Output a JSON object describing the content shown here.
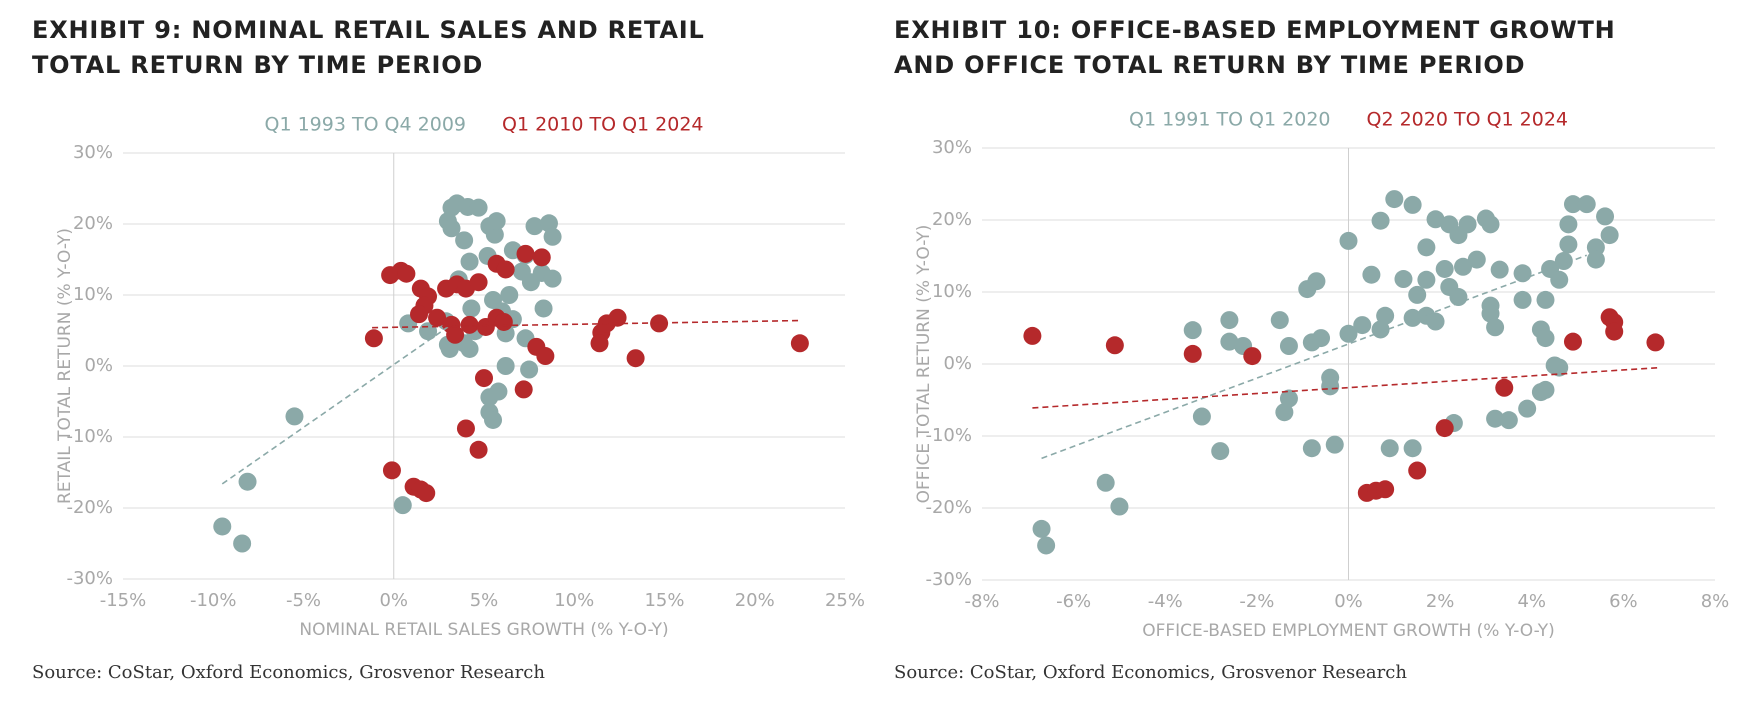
{
  "chart_data": [
    {
      "type": "scatter",
      "title": [
        "EXHIBIT 9: NOMINAL RETAIL SALES AND RETAIL",
        "TOTAL RETURN BY TIME PERIOD"
      ],
      "x_label": "NOMINAL RETAIL SALES GROWTH (% Y-O-Y)",
      "y_label": "RETAIL TOTAL RETURN (% Y-O-Y)",
      "source": "Source: CoStar, Oxford Economics, Grosvenor Research",
      "xlim": [
        -15,
        25
      ],
      "xticks": [
        {
          "value": -15,
          "label": "-15%"
        },
        {
          "value": -10,
          "label": "-10%"
        },
        {
          "value": -5,
          "label": "-5%"
        },
        {
          "value": 0,
          "label": "0%"
        },
        {
          "value": 5,
          "label": "5%"
        },
        {
          "value": 10,
          "label": "10%"
        },
        {
          "value": 15,
          "label": "15%"
        },
        {
          "value": 20,
          "label": "20%"
        },
        {
          "value": 25,
          "label": "25%"
        }
      ],
      "ylim": [
        -30,
        30
      ],
      "yticks": [
        {
          "value": -30,
          "label": "-30%"
        },
        {
          "value": -20,
          "label": "-20%"
        },
        {
          "value": -10,
          "label": "-10%"
        },
        {
          "value": 0,
          "label": "0%"
        },
        {
          "value": 10,
          "label": "10%"
        },
        {
          "value": 20,
          "label": "20%"
        },
        {
          "value": 30,
          "label": "30%"
        }
      ],
      "grid": true,
      "series": [
        {
          "name": "Q1 1993 TO Q4 2009",
          "color": "#8ba9a8",
          "x": [
            -9.5,
            -8.4,
            -8.1,
            -5.5,
            0.5,
            0.8,
            1.9,
            2.9,
            3.0,
            3.1,
            3.0,
            3.2,
            3.5,
            3.2,
            4.1,
            4.7,
            3.9,
            4.2,
            3.6,
            4.3,
            4.5,
            3.9,
            4.2,
            5.3,
            5.6,
            5.2,
            5.7,
            5.5,
            6.0,
            6.2,
            5.3,
            5.3,
            5.8,
            5.5,
            6.2,
            6.4,
            6.6,
            7.3,
            7.1,
            7.3,
            7.5,
            7.8,
            8.2,
            8.3,
            8.6,
            8.8,
            8.8,
            7.6,
            6.6
          ],
          "values": [
            -22.6,
            -25,
            -16.3,
            -7.1,
            -19.6,
            6,
            4.9,
            6.3,
            3,
            2.4,
            20.4,
            22.3,
            22.9,
            19.4,
            22.4,
            22.3,
            17.7,
            14.7,
            12.2,
            8.1,
            4.9,
            3.2,
            2.4,
            19.7,
            18.5,
            15.5,
            20.4,
            9.3,
            7.7,
            4.6,
            -4.4,
            -6.5,
            -3.6,
            -7.6,
            0,
            10,
            16.3,
            15.6,
            13.3,
            3.9,
            -0.5,
            19.7,
            13.1,
            8.1,
            20.1,
            18.2,
            12.3,
            11.8,
            6.6
          ],
          "trend_x": [
            -9.5,
            3.0
          ],
          "trend_y": [
            -16.6,
            5.5
          ]
        },
        {
          "name": "Q1 2010 TO Q1 2024",
          "color": "#b5292b",
          "x": [
            -1.1,
            -0.2,
            0.4,
            0.7,
            1.5,
            1.9,
            1.7,
            1.4,
            2.4,
            2.9,
            3.5,
            4.0,
            3.2,
            3.4,
            4.2,
            5.1,
            5.7,
            6.1,
            4.7,
            5.7,
            6.2,
            7.3,
            8.2,
            7.9,
            8.4,
            5.0,
            4.0,
            4.7,
            7.2,
            -0.1,
            1.1,
            1.5,
            1.8,
            11.5,
            11.8,
            12.4,
            11.4,
            13.4,
            14.7,
            22.5
          ],
          "values": [
            3.9,
            12.8,
            13.4,
            13,
            10.9,
            9.8,
            8.5,
            7.3,
            6.8,
            10.9,
            11.5,
            10.9,
            5.8,
            4.4,
            5.8,
            5.5,
            6.8,
            6.2,
            11.8,
            14.4,
            13.6,
            15.8,
            15.3,
            2.7,
            1.4,
            -1.7,
            -8.8,
            -11.8,
            -3.3,
            -14.7,
            -17,
            -17.4,
            -17.9,
            4.7,
            6,
            6.8,
            3.2,
            1.1,
            6,
            3.2
          ],
          "trend_x": [
            -1.2,
            22.5
          ],
          "trend_y": [
            5.4,
            6.4
          ]
        }
      ]
    },
    {
      "type": "scatter",
      "title": [
        "EXHIBIT 10: OFFICE-BASED EMPLOYMENT GROWTH",
        "AND OFFICE TOTAL RETURN BY TIME PERIOD"
      ],
      "x_label": "OFFICE-BASED EMPLOYMENT GROWTH (% Y-O-Y)",
      "y_label": "OFFICE TOTAL RETURN (% Y-O-Y)",
      "source": "Source: CoStar, Oxford Economics, Grosvenor Research",
      "xlim": [
        -8,
        8
      ],
      "xticks": [
        {
          "value": -8,
          "label": "-8%"
        },
        {
          "value": -6,
          "label": "-6%"
        },
        {
          "value": -4,
          "label": "-4%"
        },
        {
          "value": -2,
          "label": "-2%"
        },
        {
          "value": 0,
          "label": "0%"
        },
        {
          "value": 2,
          "label": "2%"
        },
        {
          "value": 4,
          "label": "4%"
        },
        {
          "value": 6,
          "label": "6%"
        },
        {
          "value": 8,
          "label": "8%"
        }
      ],
      "ylim": [
        -30,
        30
      ],
      "yticks": [
        {
          "value": -30,
          "label": "-30%"
        },
        {
          "value": -20,
          "label": "-20%"
        },
        {
          "value": -10,
          "label": "-10%"
        },
        {
          "value": 0,
          "label": "0%"
        },
        {
          "value": 10,
          "label": "10%"
        },
        {
          "value": 20,
          "label": "20%"
        },
        {
          "value": 30,
          "label": "30%"
        }
      ],
      "grid": true,
      "series": [
        {
          "name": "Q1 1991 TO Q1 2020",
          "color": "#8ba9a8",
          "x": [
            -6.7,
            -6.6,
            -5.3,
            -5.0,
            -3.4,
            -3.2,
            -2.8,
            -2.6,
            -2.6,
            -2.3,
            -1.5,
            -1.3,
            -1.3,
            -1.4,
            -0.9,
            -0.7,
            -0.8,
            -0.6,
            -0.8,
            -0.3,
            -0.4,
            -0.4,
            0,
            0.3,
            0,
            0.5,
            0.7,
            0.8,
            0.7,
            1.0,
            1.4,
            1.2,
            0.9,
            1.4,
            1.5,
            1.7,
            1.4,
            1.7,
            1.9,
            1.7,
            1.9,
            2.2,
            2.1,
            2.2,
            2.4,
            2.4,
            2.6,
            2.8,
            2.5,
            2.3,
            3.0,
            3.1,
            3.3,
            3.1,
            3.1,
            3.2,
            3.2,
            3.5,
            3.8,
            3.8,
            3.9,
            4.2,
            4.3,
            4.2,
            4.3,
            4.3,
            4.4,
            4.6,
            4.7,
            4.8,
            4.8,
            4.9,
            5.2,
            4.5,
            4.6,
            5.4,
            5.4,
            5.6,
            5.7
          ],
          "values": [
            -22.9,
            -25.2,
            -16.5,
            -19.8,
            4.7,
            -7.3,
            -12.1,
            3.1,
            6.1,
            2.5,
            6.1,
            2.5,
            -4.8,
            -6.7,
            10.4,
            11.5,
            3,
            3.6,
            -11.7,
            -11.2,
            -1.9,
            -3.1,
            4.2,
            5.4,
            17.1,
            12.4,
            4.8,
            6.7,
            19.9,
            22.9,
            22.1,
            11.8,
            -11.7,
            -11.7,
            9.6,
            11.7,
            6.4,
            6.7,
            5.9,
            16.2,
            20.1,
            19.4,
            13.2,
            10.7,
            9.3,
            17.9,
            19.4,
            14.5,
            13.5,
            -8.2,
            20.2,
            19.4,
            13.1,
            8.1,
            7,
            5.1,
            -7.6,
            -7.8,
            12.6,
            8.9,
            -6.2,
            4.8,
            3.6,
            -3.9,
            -3.6,
            8.9,
            13.2,
            11.7,
            14.3,
            16.6,
            19.4,
            22.2,
            22.2,
            -0.2,
            -0.5,
            16.2,
            14.5,
            20.5,
            17.9
          ],
          "trend_x": [
            -6.7,
            5.2
          ],
          "trend_y": [
            -13.1,
            15.1
          ]
        },
        {
          "name": "Q2 2020 TO Q1 2024",
          "color": "#b5292b",
          "x": [
            -6.9,
            -5.1,
            -3.4,
            -2.1,
            2.1,
            1.5,
            0.4,
            0.6,
            0.8,
            3.4,
            4.9,
            5.7,
            5.8,
            5.8,
            6.7
          ],
          "values": [
            3.9,
            2.6,
            1.4,
            1.1,
            -8.9,
            -14.8,
            -17.9,
            -17.6,
            -17.4,
            -3.3,
            3.1,
            6.5,
            5.8,
            4.5,
            3
          ],
          "trend_x": [
            -6.9,
            6.8
          ],
          "trend_y": [
            -6.1,
            -0.5
          ]
        }
      ]
    }
  ]
}
